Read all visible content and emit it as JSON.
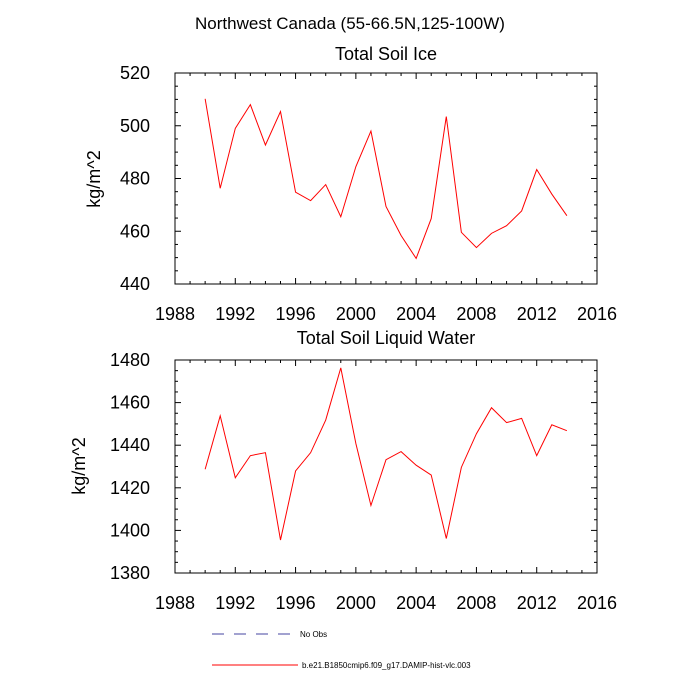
{
  "figure_title": "Northwest Canada (55-66.5N,125-100W)",
  "chart_data": [
    {
      "type": "line",
      "title": "Total Soil Ice",
      "xlabel": "",
      "ylabel": "kg/m^2",
      "xlim": [
        1988,
        2016
      ],
      "ylim": [
        440,
        520
      ],
      "xticks": [
        1988,
        1992,
        1996,
        2000,
        2004,
        2008,
        2012,
        2016
      ],
      "yticks": [
        440,
        460,
        480,
        500,
        520
      ],
      "grid": false,
      "series": [
        {
          "name": "b.e21.B1850cmip6.f09_g17.DAMIP-hist-vlc.003",
          "color": "#ff0000",
          "x": [
            1990,
            1991,
            1992,
            1993,
            1994,
            1995,
            1996,
            1997,
            1998,
            1999,
            2000,
            2001,
            2002,
            2003,
            2004,
            2005,
            2006,
            2007,
            2008,
            2009,
            2010,
            2011,
            2012,
            2013,
            2014
          ],
          "y": [
            510.2,
            476.3,
            499.0,
            508.0,
            492.7,
            505.4,
            474.8,
            471.6,
            477.7,
            465.5,
            484.5,
            498.0,
            469.4,
            458.4,
            449.7,
            464.8,
            503.5,
            459.6,
            453.8,
            459.2,
            462.1,
            467.7,
            483.4,
            474.1,
            465.9
          ]
        }
      ]
    },
    {
      "type": "line",
      "title": "Total Soil Liquid Water",
      "xlabel": "",
      "ylabel": "kg/m^2",
      "xlim": [
        1988,
        2016
      ],
      "ylim": [
        1380,
        1480
      ],
      "xticks": [
        1988,
        1992,
        1996,
        2000,
        2004,
        2008,
        2012,
        2016
      ],
      "yticks": [
        1380,
        1400,
        1420,
        1440,
        1460,
        1480
      ],
      "grid": false,
      "series": [
        {
          "name": "b.e21.B1850cmip6.f09_g17.DAMIP-hist-vlc.003",
          "color": "#ff0000",
          "x": [
            1990,
            1991,
            1992,
            1993,
            1994,
            1995,
            1996,
            1997,
            1998,
            1999,
            2000,
            2001,
            2002,
            2003,
            2004,
            2005,
            2006,
            2007,
            2008,
            2009,
            2010,
            2011,
            2012,
            2013,
            2014
          ],
          "y": [
            1428.7,
            1453.8,
            1424.7,
            1435.1,
            1436.5,
            1395.5,
            1427.9,
            1436.5,
            1451.8,
            1476.3,
            1440.8,
            1411.7,
            1433.2,
            1437.0,
            1430.6,
            1426.0,
            1396.2,
            1429.6,
            1445.4,
            1457.6,
            1450.6,
            1452.6,
            1435.1,
            1449.6,
            1446.8
          ]
        }
      ]
    }
  ],
  "legend": [
    {
      "label": "No Obs",
      "color": "#4646a0",
      "style": "dashed"
    },
    {
      "label": "b.e21.B1850cmip6.f09_g17.DAMIP-hist-vlc.003",
      "color": "#ff0000",
      "style": "solid"
    }
  ]
}
